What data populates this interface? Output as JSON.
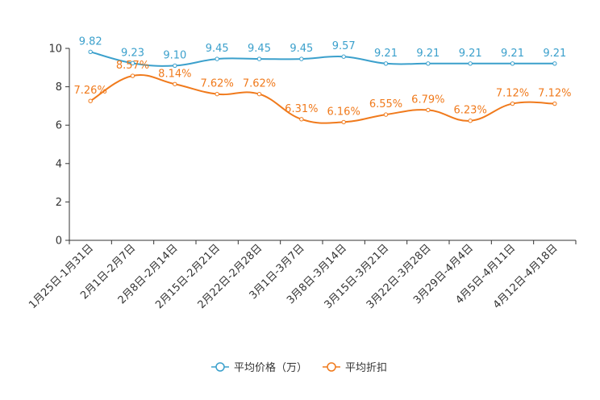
{
  "chart_data": {
    "type": "line",
    "categories": [
      "1月25日-1月31日",
      "2月1日-2月7日",
      "2月8日-2月14日",
      "2月15日-2月21日",
      "2月22日-2月28日",
      "3月1日-3月7日",
      "3月8日-3月14日",
      "3月15日-3月21日",
      "3月22日-3月28日",
      "3月29日-4月4日",
      "4月5日-4月11日",
      "4月12日-4月18日"
    ],
    "ylim": [
      0,
      10
    ],
    "yticks": [
      "0",
      "2",
      "4",
      "6",
      "8",
      "10"
    ],
    "series": [
      {
        "name": "平均价格（万）",
        "color": "#3ba0cc",
        "values": [
          9.82,
          9.23,
          9.1,
          9.45,
          9.45,
          9.45,
          9.57,
          9.21,
          9.21,
          9.21,
          9.21,
          9.21
        ],
        "labels": [
          "9.82",
          "9.23",
          "9.10",
          "9.45",
          "9.45",
          "9.45",
          "9.57",
          "9.21",
          "9.21",
          "9.21",
          "9.21",
          "9.21"
        ]
      },
      {
        "name": "平均折扣",
        "color": "#f07a1c",
        "values": [
          7.26,
          8.57,
          8.14,
          7.62,
          7.62,
          6.31,
          6.16,
          6.55,
          6.79,
          6.23,
          7.12,
          7.12
        ],
        "labels": [
          "7.26%",
          "8.57%",
          "8.14%",
          "7.62%",
          "7.62%",
          "6.31%",
          "6.16%",
          "6.55%",
          "6.79%",
          "6.23%",
          "7.12%",
          "7.12%"
        ]
      }
    ],
    "legend_position": "bottom-center"
  }
}
